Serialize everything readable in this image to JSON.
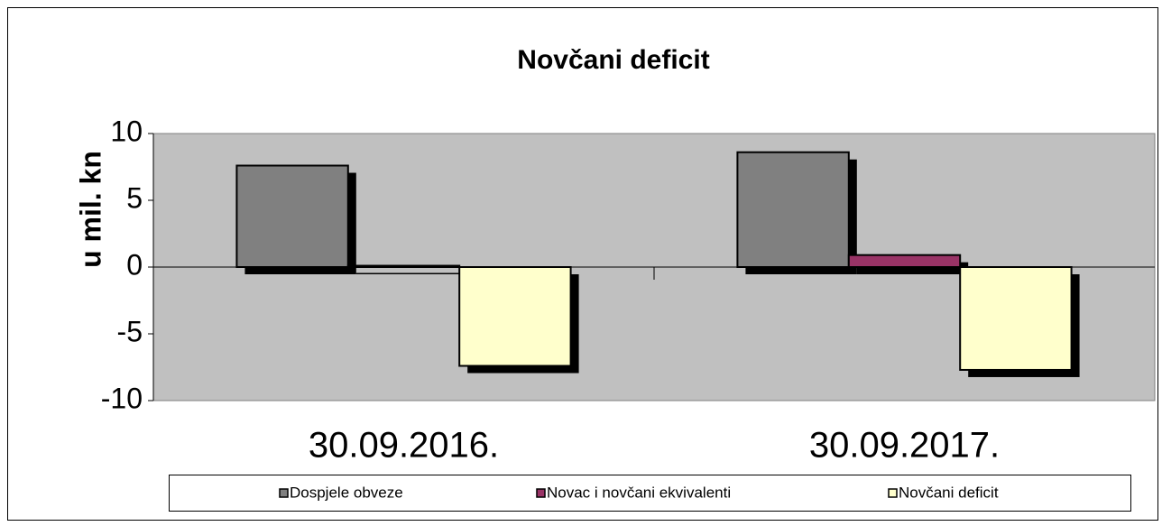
{
  "chart_data": {
    "type": "bar",
    "title": "Novčani deficit",
    "y_label": "u mil. kn",
    "categories": [
      "30.09.2016.",
      "30.09.2017."
    ],
    "series": [
      {
        "name": "Dospjele obveze",
        "color": "#808080",
        "values": [
          7.6,
          8.6
        ]
      },
      {
        "name": "Novac i novčani ekvivalenti",
        "color": "#993366",
        "values": [
          0.1,
          0.9
        ]
      },
      {
        "name": "Novčani deficit",
        "color": "#ffffcc",
        "values": [
          -7.4,
          -7.7
        ]
      }
    ],
    "ylim": [
      -10,
      10
    ],
    "yticks": [
      -10,
      -5,
      0,
      5,
      10
    ],
    "legend": "bottom"
  }
}
